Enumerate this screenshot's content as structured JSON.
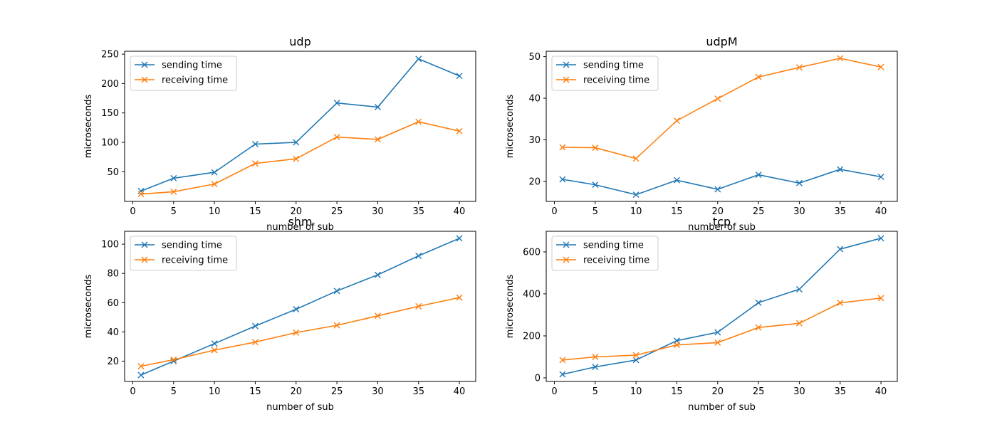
{
  "colors": {
    "sending": "#1f77b4",
    "receiving": "#ff7f0e"
  },
  "chart_data": [
    {
      "type": "line",
      "title": "udp",
      "xlabel": "number of sub",
      "ylabel": "microseconds",
      "x": [
        1,
        5,
        10,
        15,
        20,
        25,
        30,
        35,
        40
      ],
      "xticks": [
        0,
        5,
        10,
        15,
        20,
        25,
        30,
        35,
        40
      ],
      "yticks": [
        50,
        100,
        150,
        200,
        250
      ],
      "xlim": [
        -1.0,
        42.0
      ],
      "ylim": [
        -0.5,
        255
      ],
      "legend": "top-left",
      "series": [
        {
          "name": "sending time",
          "values": [
            17,
            39,
            49,
            97,
            100,
            167,
            160,
            242,
            213
          ]
        },
        {
          "name": "receiving time",
          "values": [
            12,
            16,
            29,
            64,
            72,
            109,
            105,
            135,
            119
          ]
        }
      ]
    },
    {
      "type": "line",
      "title": "udpM",
      "xlabel": "number of sub",
      "ylabel": "microseconds",
      "x": [
        1,
        5,
        10,
        15,
        20,
        25,
        30,
        35,
        40
      ],
      "xticks": [
        0,
        5,
        10,
        15,
        20,
        25,
        30,
        35,
        40
      ],
      "yticks": [
        20,
        30,
        40,
        50
      ],
      "xlim": [
        -1.0,
        42.0
      ],
      "ylim": [
        15.2,
        51.3
      ],
      "legend": "top-left",
      "series": [
        {
          "name": "sending time",
          "values": [
            20.5,
            19.2,
            16.8,
            20.3,
            18.1,
            21.6,
            19.6,
            22.9,
            21.1
          ]
        },
        {
          "name": "receiving time",
          "values": [
            28.2,
            28.1,
            25.5,
            34.6,
            39.9,
            45.1,
            47.4,
            49.6,
            47.5
          ]
        }
      ]
    },
    {
      "type": "line",
      "title": "shm",
      "xlabel": "number of sub",
      "ylabel": "microseconds",
      "x": [
        1,
        5,
        10,
        15,
        20,
        25,
        30,
        35,
        40
      ],
      "xticks": [
        0,
        5,
        10,
        15,
        20,
        25,
        30,
        35,
        40
      ],
      "yticks": [
        20,
        40,
        60,
        80,
        100
      ],
      "xlim": [
        -1.0,
        42.0
      ],
      "ylim": [
        6.1,
        108.8
      ],
      "legend": "top-left",
      "series": [
        {
          "name": "sending time",
          "values": [
            10.5,
            20,
            32,
            44,
            55.5,
            68,
            79,
            92,
            104
          ]
        },
        {
          "name": "receiving time",
          "values": [
            16.5,
            21,
            27.5,
            33,
            39.5,
            44.5,
            51,
            57.5,
            63.5
          ]
        }
      ]
    },
    {
      "type": "line",
      "title": "tcp",
      "xlabel": "number of sub",
      "ylabel": "microseconds",
      "x": [
        1,
        5,
        10,
        15,
        20,
        25,
        30,
        35,
        40
      ],
      "xticks": [
        0,
        5,
        10,
        15,
        20,
        25,
        30,
        35,
        40
      ],
      "yticks": [
        0,
        200,
        400,
        600
      ],
      "xlim": [
        -1.0,
        42.0
      ],
      "ylim": [
        -17,
        698
      ],
      "legend": "top-left",
      "series": [
        {
          "name": "sending time",
          "values": [
            17,
            52,
            85,
            177,
            217,
            358,
            422,
            613,
            665
          ]
        },
        {
          "name": "receiving time",
          "values": [
            85,
            100,
            108,
            157,
            168,
            240,
            260,
            357,
            380
          ]
        }
      ]
    }
  ]
}
